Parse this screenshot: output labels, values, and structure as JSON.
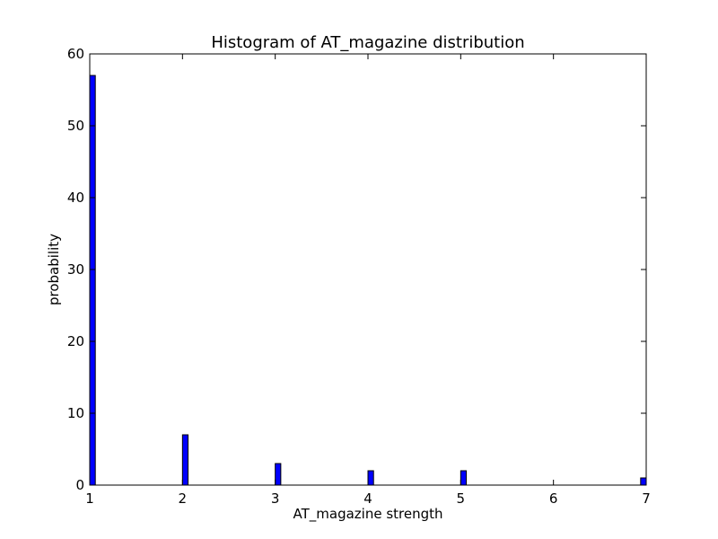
{
  "chart_data": {
    "type": "bar",
    "title": "Histogram of AT_magazine  distribution",
    "xlabel": "AT_magazine  strength",
    "ylabel": "probability",
    "xlim": [
      1,
      7
    ],
    "ylim": [
      0,
      60
    ],
    "x_ticks": [
      "1",
      "2",
      "3",
      "4",
      "5",
      "6",
      "7"
    ],
    "y_ticks": [
      "0",
      "10",
      "20",
      "30",
      "40",
      "50",
      "60"
    ],
    "bin_width": 0.06,
    "bars": [
      {
        "x": 1,
        "value": 57
      },
      {
        "x": 2,
        "value": 7
      },
      {
        "x": 3,
        "value": 3
      },
      {
        "x": 4,
        "value": 2
      },
      {
        "x": 5,
        "value": 2
      },
      {
        "x": 6.94,
        "value": 1
      }
    ],
    "bar_color": "#0000ff",
    "grid": false
  }
}
